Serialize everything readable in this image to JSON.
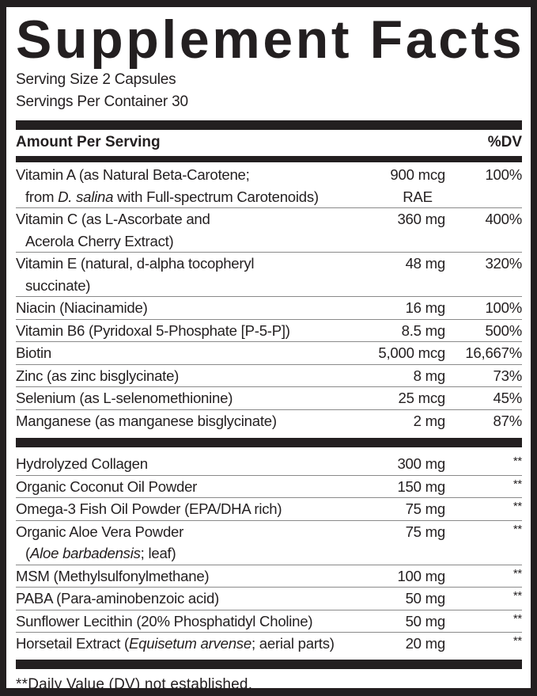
{
  "title": "Supplement Facts",
  "serving_size": "Serving Size 2 Capsules",
  "servings_per_container": "Servings Per Container 30",
  "header": {
    "amount": "Amount Per Serving",
    "dv": "%DV"
  },
  "vitamins": [
    {
      "name": [
        [
          {
            "t": "Vitamin A (as Natural Beta-Carotene;"
          }
        ],
        [
          {
            "t": "from "
          },
          {
            "t": "D. salina",
            "i": true
          },
          {
            "t": " with Full-spectrum Carotenoids)"
          }
        ]
      ],
      "amount": "900 mcg",
      "amount_unit": "RAE",
      "dv": "100%"
    },
    {
      "name": [
        [
          {
            "t": "Vitamin C (as  L-Ascorbate and"
          }
        ],
        [
          {
            "t": "Acerola Cherry Extract)"
          }
        ]
      ],
      "amount": "360 mg",
      "dv": "400%"
    },
    {
      "name": [
        [
          {
            "t": "Vitamin E (natural, d-alpha tocopheryl"
          }
        ],
        [
          {
            "t": "succinate)"
          }
        ]
      ],
      "amount": "48 mg",
      "dv": "320%"
    },
    {
      "name": [
        [
          {
            "t": "Niacin (Niacinamide)"
          }
        ]
      ],
      "amount": "16 mg",
      "dv": "100%"
    },
    {
      "name": [
        [
          {
            "t": "Vitamin B6 (Pyridoxal 5-Phosphate [P-5-P])"
          }
        ]
      ],
      "amount": "8.5 mg",
      "dv": "500%"
    },
    {
      "name": [
        [
          {
            "t": "Biotin"
          }
        ]
      ],
      "amount": "5,000 mcg",
      "dv": "16,667%"
    },
    {
      "name": [
        [
          {
            "t": "Zinc (as zinc bisglycinate)"
          }
        ]
      ],
      "amount": "8 mg",
      "dv": "73%"
    },
    {
      "name": [
        [
          {
            "t": "Selenium (as L-selenomethionine)"
          }
        ]
      ],
      "amount": "25 mcg",
      "dv": "45%"
    },
    {
      "name": [
        [
          {
            "t": "Manganese (as manganese bisglycinate)"
          }
        ]
      ],
      "amount": "2 mg",
      "dv": "87%"
    }
  ],
  "others": [
    {
      "name": [
        [
          {
            "t": "Hydrolyzed Collagen"
          }
        ]
      ],
      "amount": "300 mg",
      "dv": "**"
    },
    {
      "name": [
        [
          {
            "t": "Organic Coconut Oil Powder"
          }
        ]
      ],
      "amount": "150 mg",
      "dv": "**"
    },
    {
      "name": [
        [
          {
            "t": "Omega-3 Fish Oil Powder (EPA/DHA rich)"
          }
        ]
      ],
      "amount": "75 mg",
      "dv": "**"
    },
    {
      "name": [
        [
          {
            "t": "Organic Aloe Vera Powder"
          }
        ],
        [
          {
            "t": "("
          },
          {
            "t": "Aloe barbadensis",
            "i": true
          },
          {
            "t": "; leaf)"
          }
        ]
      ],
      "amount": "75 mg",
      "dv": "**"
    },
    {
      "name": [
        [
          {
            "t": "MSM (Methylsulfonylmethane)"
          }
        ]
      ],
      "amount": "100 mg",
      "dv": "**"
    },
    {
      "name": [
        [
          {
            "t": "PABA (Para-aminobenzoic acid)"
          }
        ]
      ],
      "amount": "50 mg",
      "dv": "**"
    },
    {
      "name": [
        [
          {
            "t": "Sunflower Lecithin (20% Phosphatidyl Choline)"
          }
        ]
      ],
      "amount": "50 mg",
      "dv": "**"
    },
    {
      "name": [
        [
          {
            "t": "Horsetail Extract ("
          },
          {
            "t": "Equisetum arvense",
            "i": true
          },
          {
            "t": "; aerial parts)"
          }
        ]
      ],
      "amount": "20 mg",
      "dv": "**"
    }
  ],
  "footnote": "**Daily Value (DV) not established."
}
